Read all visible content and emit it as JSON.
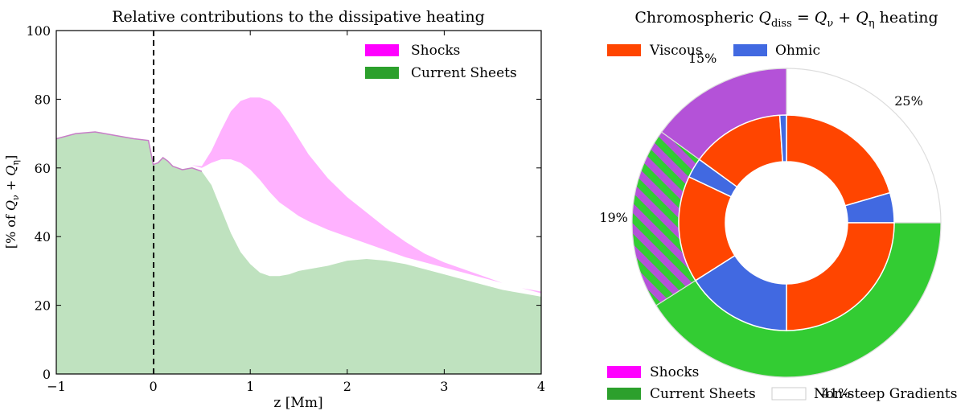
{
  "chart_data": [
    {
      "type": "area",
      "title": "Relative contributions to the dissipative heating",
      "xlabel": "z [Mm]",
      "ylabel": "[% of Qν + Qη]",
      "xlim": [
        -1,
        4
      ],
      "ylim": [
        0,
        100
      ],
      "xticks": [
        -1,
        0,
        1,
        2,
        3,
        4
      ],
      "xtick_labels": [
        "−1",
        "0",
        "1",
        "2",
        "3",
        "4"
      ],
      "yticks": [
        0,
        20,
        40,
        60,
        80,
        100
      ],
      "ytick_labels": [
        "0",
        "20",
        "40",
        "60",
        "80",
        "100"
      ],
      "vline_x": 0,
      "legend_position": "top-right",
      "series": [
        {
          "name": "Shocks",
          "color": "#ff00ff",
          "x": [
            0.0,
            0.05,
            0.1,
            0.15,
            0.2,
            0.3,
            0.4,
            0.5,
            0.6,
            0.7,
            0.8,
            0.9,
            1.0,
            1.1,
            1.2,
            1.3,
            1.4,
            1.5,
            1.6,
            1.8,
            2.0,
            2.2,
            2.4,
            2.6,
            2.8,
            3.0,
            3.2,
            3.4,
            3.6,
            3.8,
            4.0
          ],
          "upper": [
            61,
            61.5,
            63,
            62,
            60.5,
            60,
            60.8,
            60.5,
            65,
            71,
            76.5,
            79.5,
            80.5,
            80.5,
            79.5,
            77,
            73,
            68.5,
            64,
            57,
            51.5,
            47,
            42.5,
            38.5,
            35,
            32.5,
            30.5,
            28.5,
            26.5,
            25,
            24
          ],
          "lower": [
            61,
            61.5,
            63,
            62,
            60.5,
            60,
            60.8,
            60,
            61.5,
            62.5,
            62.5,
            61.5,
            59.5,
            56.5,
            53,
            50,
            48,
            46,
            44.5,
            42,
            40,
            38,
            36,
            34,
            32.5,
            31,
            29.5,
            28,
            26.5,
            25,
            23.5
          ]
        },
        {
          "name": "Current Sheets",
          "color": "#2ca02c",
          "x": [
            -1.0,
            -0.8,
            -0.6,
            -0.4,
            -0.2,
            -0.05,
            0.0,
            0.05,
            0.1,
            0.15,
            0.2,
            0.3,
            0.4,
            0.5,
            0.6,
            0.7,
            0.8,
            0.9,
            1.0,
            1.1,
            1.2,
            1.3,
            1.4,
            1.5,
            1.6,
            1.8,
            2.0,
            2.2,
            2.4,
            2.6,
            2.8,
            3.0,
            3.2,
            3.4,
            3.6,
            3.8,
            4.0
          ],
          "values": [
            68.5,
            70,
            70.5,
            69.5,
            68.5,
            68,
            61,
            61.5,
            63,
            62,
            60.5,
            59.5,
            60,
            59,
            55,
            48,
            41,
            35.5,
            32,
            29.5,
            28.5,
            28.5,
            29,
            30,
            30.5,
            31.5,
            33,
            33.5,
            33,
            32,
            30.5,
            29,
            27.5,
            26,
            24.5,
            23.5,
            22.5
          ]
        }
      ]
    },
    {
      "type": "pie",
      "title": "Chromospheric Q_diss = Qν + Qη heating",
      "title_parts": {
        "pre": "Chromospheric ",
        "q": "Q",
        "sub_diss": "diss",
        "mid": " = ",
        "sub_nu": "ν",
        "plus": " + ",
        "sub_eta": "η",
        "post": " heating"
      },
      "outer_ring": [
        {
          "label": "Non-steep Gradients",
          "percent": 25,
          "color": "#ffffff",
          "label_text": "25%"
        },
        {
          "label": "Current Sheets",
          "percent": 41,
          "color": "#33cc33",
          "label_text": "41%"
        },
        {
          "label": "Shocks / Current Sheets overlap",
          "percent": 19,
          "color": "#b452d8",
          "hatch_color": "#33cc33",
          "label_text": "19%"
        },
        {
          "label": "Shocks",
          "percent": 15,
          "color": "#b452d8",
          "label_text": "15%"
        }
      ],
      "inner_ring": [
        {
          "label": "Viscous",
          "percent": 20.5,
          "color": "#ff4500"
        },
        {
          "label": "Ohmic",
          "percent": 4.5,
          "color": "#4169e1"
        },
        {
          "label": "Viscous",
          "percent": 25,
          "color": "#ff4500"
        },
        {
          "label": "Ohmic",
          "percent": 16,
          "color": "#4169e1"
        },
        {
          "label": "Viscous",
          "percent": 16,
          "color": "#ff4500"
        },
        {
          "label": "Ohmic",
          "percent": 3,
          "color": "#4169e1"
        },
        {
          "label": "Viscous",
          "percent": 14,
          "color": "#ff4500"
        },
        {
          "label": "Ohmic",
          "percent": 1,
          "color": "#4169e1"
        }
      ],
      "legend_top": [
        {
          "label": "Viscous",
          "color": "#ff4500"
        },
        {
          "label": "Ohmic",
          "color": "#4169e1"
        }
      ],
      "legend_bottom": [
        {
          "label": "Shocks",
          "color": "#ff00ff"
        },
        {
          "label": "Current Sheets",
          "color": "#2ca02c"
        },
        {
          "label": "Non-steep Gradients",
          "color": "#ffffff"
        }
      ]
    }
  ]
}
